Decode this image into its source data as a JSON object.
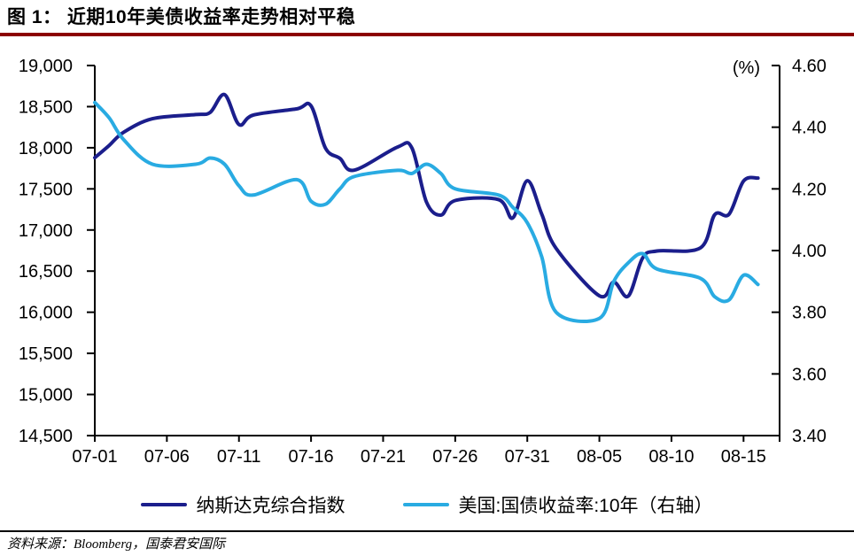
{
  "header": {
    "title": "图 1： 近期10年美债收益率走势相对平稳",
    "underline_color": "#8B0000"
  },
  "chart_data": {
    "type": "line",
    "title": "近期10年美债收益率走势相对平稳",
    "x_tick_labels": [
      "07-01",
      "07-06",
      "07-11",
      "07-16",
      "07-21",
      "07-26",
      "07-31",
      "08-05",
      "08-10",
      "08-15"
    ],
    "y_left": {
      "min": 14500,
      "max": 19000,
      "step": 500,
      "tick_labels": [
        "19,000",
        "18,500",
        "18,000",
        "17,500",
        "17,000",
        "16,500",
        "16,000",
        "15,500",
        "15,000",
        "14,500"
      ]
    },
    "y_right": {
      "min": 3.4,
      "max": 4.6,
      "step": 0.2,
      "unit_label": "(%)",
      "tick_labels": [
        "4.60",
        "4.40",
        "4.20",
        "4.00",
        "3.80",
        "3.60",
        "3.40"
      ]
    },
    "grid": false,
    "legend_position": "bottom",
    "x": [
      "07-01",
      "07-02",
      "07-03",
      "07-05",
      "07-08",
      "07-09",
      "07-10",
      "07-11",
      "07-12",
      "07-15",
      "07-16",
      "07-17",
      "07-18",
      "07-19",
      "07-22",
      "07-23",
      "07-24",
      "07-25",
      "07-26",
      "07-29",
      "07-30",
      "07-31",
      "08-01",
      "08-02",
      "08-05",
      "08-06",
      "08-07",
      "08-08",
      "08-09",
      "08-12",
      "08-13",
      "08-14",
      "08-15",
      "08-16"
    ],
    "series": [
      {
        "name": "纳斯达克综合指数",
        "axis": "left",
        "color": "#1B1E8C",
        "values": [
          17879,
          18029,
          18188,
          18353,
          18404,
          18429,
          18647,
          18283,
          18398,
          18473,
          18509,
          17996,
          17871,
          17727,
          18008,
          17997,
          17342,
          17181,
          17358,
          17370,
          17147,
          17599,
          17194,
          16776,
          16200,
          16367,
          16196,
          16660,
          16745,
          16781,
          17187,
          17192,
          17595,
          17632
        ]
      },
      {
        "name": "美国:国债收益率:10年（右轴）",
        "axis": "right",
        "color": "#29ABE2",
        "values": [
          4.48,
          4.43,
          4.36,
          4.28,
          4.28,
          4.3,
          4.28,
          4.21,
          4.18,
          4.23,
          4.16,
          4.15,
          4.2,
          4.24,
          4.26,
          4.25,
          4.28,
          4.25,
          4.2,
          4.18,
          4.14,
          4.09,
          3.98,
          3.8,
          3.78,
          3.9,
          3.96,
          3.99,
          3.94,
          3.91,
          3.85,
          3.84,
          3.92,
          3.89
        ]
      }
    ]
  },
  "legend": {
    "items": [
      {
        "label": "纳斯达克综合指数",
        "color": "#1B1E8C"
      },
      {
        "label": "美国:国债收益率:10年（右轴）",
        "color": "#29ABE2"
      }
    ]
  },
  "footer": {
    "source_text": "资料来源：Bloomberg，国泰君安国际"
  }
}
